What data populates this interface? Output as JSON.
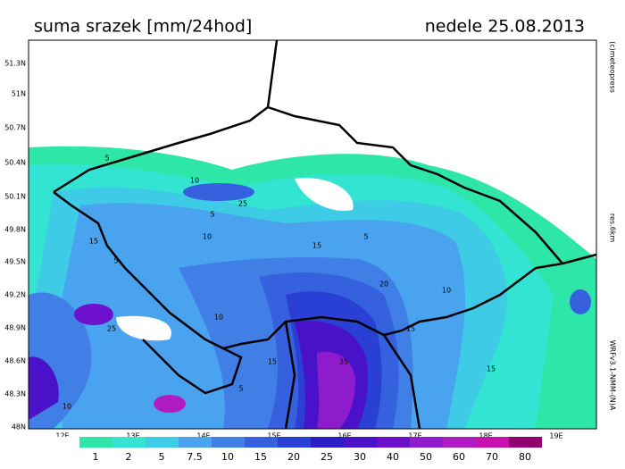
{
  "header": {
    "title": "suma srazek [mm/24hod]",
    "date": "nedele 25.08.2013"
  },
  "side_texts": [
    "(c)meteopress",
    "res.6km",
    "WRFv3.1-NMM-(N)A"
  ],
  "latitude_labels": [
    "51.3N",
    "51N",
    "50.7N",
    "50.4N",
    "50.1N",
    "49.8N",
    "49.5N",
    "49.2N",
    "48.9N",
    "48.6N",
    "48.3N",
    "48N"
  ],
  "longitude_labels": [
    "12E",
    "13E",
    "14E",
    "15E",
    "16E",
    "17E",
    "18E",
    "19E"
  ],
  "contour_labels": [
    "5",
    "10",
    "25",
    "5",
    "10",
    "15",
    "5",
    "10",
    "15",
    "20",
    "10",
    "5",
    "15",
    "35",
    "15",
    "10",
    "15",
    "5",
    "25"
  ],
  "legend": {
    "levels": [
      1,
      2,
      5,
      7.5,
      10,
      15,
      20,
      25,
      30,
      40,
      50,
      60,
      70,
      80
    ],
    "colors": [
      "#ffffff",
      "#2de6a8",
      "#34e4d2",
      "#3ecbe6",
      "#4aa3ee",
      "#3f7fe6",
      "#3560de",
      "#2a3fd4",
      "#2a1ec4",
      "#4a12c8",
      "#6c10cc",
      "#8e1ccc",
      "#b01cc2",
      "#c810ae",
      "#900070"
    ]
  }
}
